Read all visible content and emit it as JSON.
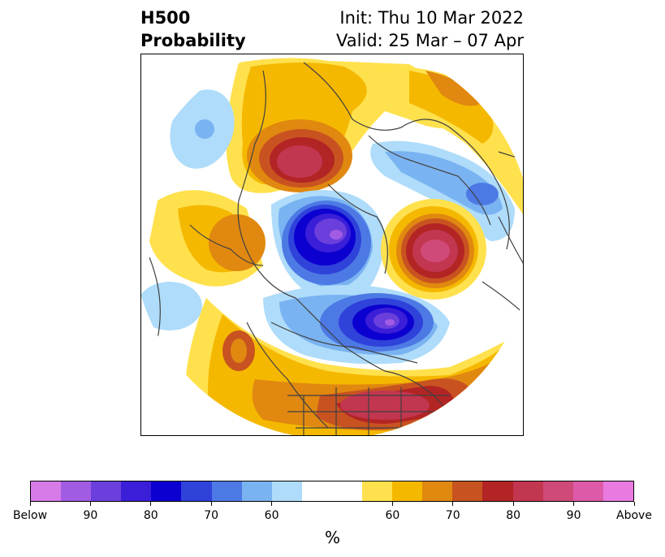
{
  "title": {
    "left_line1": "H500",
    "left_line2": "Probability",
    "right_line1": "Init: Thu 10 Mar 2022",
    "right_line2": "Valid: 25 Mar – 07 Apr"
  },
  "map": {
    "projection": "north-polar-stereographic",
    "background": "#ffffff",
    "coastline_color": "#404040"
  },
  "colorbar": {
    "unit": "%",
    "colors": [
      "#d77be9",
      "#a25ce3",
      "#6a3fdc",
      "#3a1ed8",
      "#0b00d0",
      "#2f42da",
      "#4d79e5",
      "#7ab3f1",
      "#aedcfa",
      "#ffffff",
      "#ffe14d",
      "#f5b800",
      "#e08810",
      "#c85320",
      "#b32424",
      "#c23650",
      "#cf4a78",
      "#dc5aa8",
      "#e87ae0"
    ],
    "tick_labels": [
      "Below",
      "90",
      "80",
      "70",
      "60",
      "60",
      "70",
      "80",
      "90",
      "Above"
    ]
  }
}
